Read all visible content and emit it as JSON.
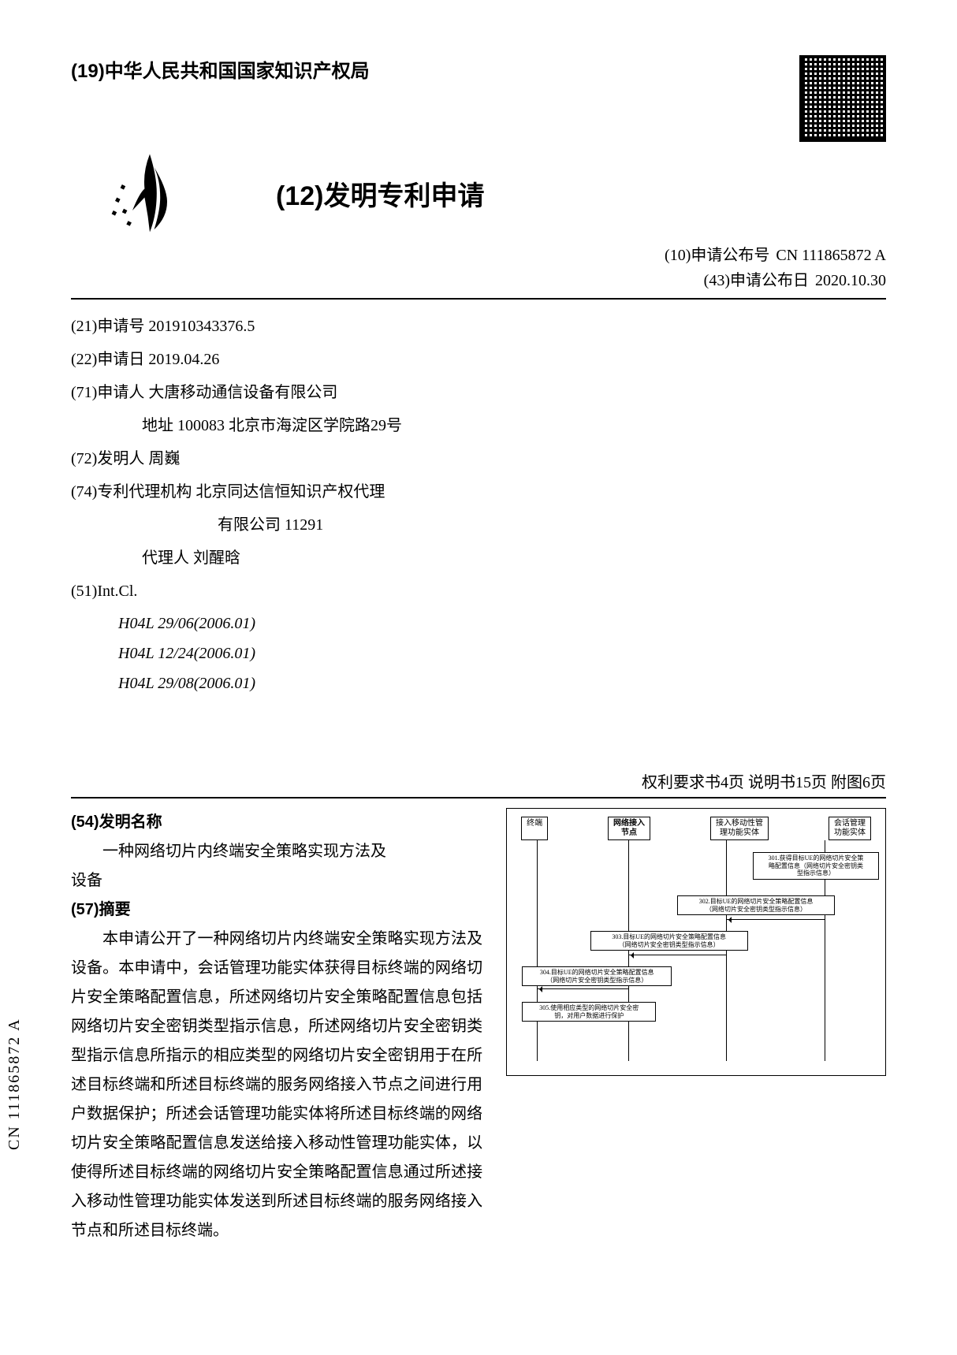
{
  "header": {
    "authority_prefix": "(19)",
    "authority_name": "中华人民共和国国家知识产权局",
    "doc_type_prefix": "(12)",
    "doc_type": "发明专利申请"
  },
  "pub": {
    "pub_no_label": "(10)申请公布号",
    "pub_no": "CN 111865872 A",
    "pub_date_label": "(43)申请公布日",
    "pub_date": "2020.10.30"
  },
  "biblio": {
    "app_no_label": "(21)申请号",
    "app_no": "201910343376.5",
    "app_date_label": "(22)申请日",
    "app_date": "2019.04.26",
    "applicant_label": "(71)申请人",
    "applicant": "大唐移动通信设备有限公司",
    "address_label": "地址",
    "address": "100083 北京市海淀区学院路29号",
    "inventor_label": "(72)发明人",
    "inventor": "周巍",
    "agency_label": "(74)专利代理机构",
    "agency_line1": "北京同达信恒知识产权代理",
    "agency_line2": "有限公司 11291",
    "agent_label": "代理人",
    "agent": "刘醒晗",
    "intcl_label": "(51)Int.Cl.",
    "intcl": [
      "H04L 29/06(2006.01)",
      "H04L 12/24(2006.01)",
      "H04L 29/08(2006.01)"
    ]
  },
  "page_counts": "权利要求书4页  说明书15页  附图6页",
  "invention": {
    "name_label": "(54)发明名称",
    "name_line1": "一种网络切片内终端安全策略实现方法及",
    "name_line2": "设备",
    "abstract_label": "(57)摘要",
    "abstract": "本申请公开了一种网络切片内终端安全策略实现方法及设备。本申请中，会话管理功能实体获得目标终端的网络切片安全策略配置信息，所述网络切片安全策略配置信息包括网络切片安全密钥类型指示信息，所述网络切片安全密钥类型指示信息所指示的相应类型的网络切片安全密钥用于在所述目标终端和所述目标终端的服务网络接入节点之间进行用户数据保护；所述会话管理功能实体将所述目标终端的网络切片安全策略配置信息发送给接入移动性管理功能实体，以使得所述目标终端的网络切片安全策略配置信息通过所述接入移动性管理功能实体发送到所述目标终端的服务网络接入节点和所述目标终端。"
  },
  "figure": {
    "nodes": [
      "终端",
      "网络接入\n节点",
      "接入移动性管\n理功能实体",
      "会话管理\n功能实体"
    ],
    "msgs": [
      "301.获得目标UE的网络切片安全策\n略配置信息（网络切片安全密钥类\n型指示信息）",
      "302.目标UE的网络切片安全策略配置信息\n（网络切片安全密钥类型指示信息）",
      "303.目标UE的网络切片安全策略配置信息\n（网络切片安全密钥类型指示信息）",
      "304.目标UE的网络切片安全策略配置信息\n（网络切片安全密钥类型指示信息）",
      "305.使用相应类型的网络切片安全密\n钥，对用户数据进行保护"
    ],
    "node_positions_pct": [
      8,
      32,
      58,
      84
    ],
    "bold_node_index": 1
  },
  "side_label": "CN 111865872 A",
  "colors": {
    "text": "#000000",
    "background": "#ffffff",
    "rule": "#000000"
  }
}
